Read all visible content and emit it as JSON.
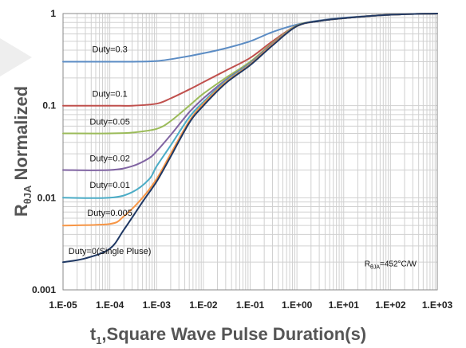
{
  "chart_data": {
    "type": "line",
    "title": "",
    "xlabel": "t1,Square Wave Pulse Duration(s)",
    "xlabel_main": "t",
    "xlabel_sub": "1",
    "xlabel_rest": ",Square Wave Pulse Duration(s)",
    "ylabel": "RθJA Normalized",
    "ylabel_main": "R",
    "ylabel_sub": "θJA",
    "ylabel_rest": " Normalized",
    "x_scale": "log",
    "y_scale": "log",
    "xlim": [
      1e-05,
      1000
    ],
    "ylim": [
      0.001,
      1
    ],
    "grid": true,
    "x_ticks": [
      {
        "value": 1e-05,
        "label": "1.E-05"
      },
      {
        "value": 0.0001,
        "label": "1.E-04"
      },
      {
        "value": 0.001,
        "label": "1.E-03"
      },
      {
        "value": 0.01,
        "label": "1.E-02"
      },
      {
        "value": 0.1,
        "label": "1.E-01"
      },
      {
        "value": 1,
        "label": "1.E+00"
      },
      {
        "value": 10,
        "label": "1.E+01"
      },
      {
        "value": 100,
        "label": "1.E+02"
      },
      {
        "value": 1000,
        "label": "1.E+03"
      }
    ],
    "y_ticks": [
      {
        "value": 0.001,
        "label": "0.001"
      },
      {
        "value": 0.01,
        "label": "0.01"
      },
      {
        "value": 0.1,
        "label": "0.1"
      },
      {
        "value": 1,
        "label": "1"
      }
    ],
    "annotation": {
      "main": "R",
      "sub": "θJA",
      "rest": "=452°C/W",
      "x": 100,
      "y": 0.0018
    },
    "series": [
      {
        "name": "Duty=0.3",
        "color": "#5b8cc4",
        "label_at": [
          0.0001,
          0.38
        ],
        "points": [
          [
            1e-05,
            0.3
          ],
          [
            0.0001,
            0.3
          ],
          [
            0.0003,
            0.3
          ],
          [
            0.001,
            0.305
          ],
          [
            0.003,
            0.33
          ],
          [
            0.01,
            0.37
          ],
          [
            0.03,
            0.42
          ],
          [
            0.1,
            0.5
          ],
          [
            0.3,
            0.63
          ],
          [
            1,
            0.76
          ],
          [
            3,
            0.84
          ],
          [
            10,
            0.9
          ],
          [
            100,
            0.97
          ],
          [
            1000,
            1.0
          ]
        ]
      },
      {
        "name": "Duty=0.1",
        "color": "#c0504d",
        "label_at": [
          0.0001,
          0.125
        ],
        "points": [
          [
            1e-05,
            0.1
          ],
          [
            0.0001,
            0.1
          ],
          [
            0.0003,
            0.1
          ],
          [
            0.001,
            0.105
          ],
          [
            0.002,
            0.12
          ],
          [
            0.005,
            0.15
          ],
          [
            0.01,
            0.18
          ],
          [
            0.03,
            0.24
          ],
          [
            0.1,
            0.33
          ],
          [
            0.3,
            0.5
          ],
          [
            1,
            0.74
          ],
          [
            3,
            0.83
          ],
          [
            10,
            0.89
          ],
          [
            100,
            0.97
          ],
          [
            1000,
            1.0
          ]
        ]
      },
      {
        "name": "Duty=0.05",
        "color": "#9bbb59",
        "label_at": [
          0.0001,
          0.062
        ],
        "points": [
          [
            1e-05,
            0.05
          ],
          [
            0.0001,
            0.05
          ],
          [
            0.0003,
            0.051
          ],
          [
            0.001,
            0.056
          ],
          [
            0.002,
            0.068
          ],
          [
            0.005,
            0.1
          ],
          [
            0.01,
            0.135
          ],
          [
            0.03,
            0.2
          ],
          [
            0.1,
            0.3
          ],
          [
            0.3,
            0.48
          ],
          [
            1,
            0.74
          ],
          [
            3,
            0.83
          ],
          [
            10,
            0.89
          ],
          [
            100,
            0.97
          ],
          [
            1000,
            1.0
          ]
        ]
      },
      {
        "name": "Duty=0.02",
        "color": "#8064a2",
        "label_at": [
          0.0001,
          0.025
        ],
        "points": [
          [
            1e-05,
            0.02
          ],
          [
            0.0001,
            0.02
          ],
          [
            0.0003,
            0.022
          ],
          [
            0.0007,
            0.027
          ],
          [
            0.001,
            0.032
          ],
          [
            0.002,
            0.048
          ],
          [
            0.005,
            0.085
          ],
          [
            0.01,
            0.12
          ],
          [
            0.03,
            0.19
          ],
          [
            0.1,
            0.29
          ],
          [
            0.3,
            0.47
          ],
          [
            1,
            0.73
          ],
          [
            3,
            0.83
          ],
          [
            10,
            0.89
          ],
          [
            100,
            0.97
          ],
          [
            1000,
            1.0
          ]
        ]
      },
      {
        "name": "Duty=0.01",
        "color": "#4bacc6",
        "label_at": [
          0.0001,
          0.0128
        ],
        "points": [
          [
            1e-05,
            0.01
          ],
          [
            0.0001,
            0.01
          ],
          [
            0.0003,
            0.0115
          ],
          [
            0.0007,
            0.016
          ],
          [
            0.001,
            0.022
          ],
          [
            0.002,
            0.037
          ],
          [
            0.005,
            0.075
          ],
          [
            0.01,
            0.11
          ],
          [
            0.03,
            0.185
          ],
          [
            0.1,
            0.285
          ],
          [
            0.3,
            0.46
          ],
          [
            1,
            0.73
          ],
          [
            3,
            0.83
          ],
          [
            10,
            0.89
          ],
          [
            100,
            0.97
          ],
          [
            1000,
            1.0
          ]
        ]
      },
      {
        "name": "Duty=0.005",
        "color": "#f79646",
        "label_at": [
          0.0001,
          0.0064
        ],
        "points": [
          [
            1e-05,
            0.005
          ],
          [
            0.0001,
            0.0052
          ],
          [
            0.0002,
            0.0063
          ],
          [
            0.0005,
            0.01
          ],
          [
            0.001,
            0.016
          ],
          [
            0.002,
            0.03
          ],
          [
            0.005,
            0.068
          ],
          [
            0.01,
            0.105
          ],
          [
            0.03,
            0.18
          ],
          [
            0.1,
            0.28
          ],
          [
            0.3,
            0.46
          ],
          [
            1,
            0.73
          ],
          [
            3,
            0.83
          ],
          [
            10,
            0.89
          ],
          [
            100,
            0.97
          ],
          [
            1000,
            1.0
          ]
        ]
      },
      {
        "name": "Duty=0(Single Pluse)",
        "color": "#1f3864",
        "label_at": [
          0.0001,
          0.00245
        ],
        "points": [
          [
            1e-05,
            0.002
          ],
          [
            3e-05,
            0.0022
          ],
          [
            0.0001,
            0.0028
          ],
          [
            0.0002,
            0.0045
          ],
          [
            0.0005,
            0.009
          ],
          [
            0.001,
            0.015
          ],
          [
            0.002,
            0.028
          ],
          [
            0.005,
            0.065
          ],
          [
            0.01,
            0.1
          ],
          [
            0.03,
            0.175
          ],
          [
            0.1,
            0.275
          ],
          [
            0.3,
            0.45
          ],
          [
            1,
            0.73
          ],
          [
            3,
            0.83
          ],
          [
            10,
            0.89
          ],
          [
            100,
            0.97
          ],
          [
            1000,
            1.0
          ]
        ]
      }
    ]
  }
}
